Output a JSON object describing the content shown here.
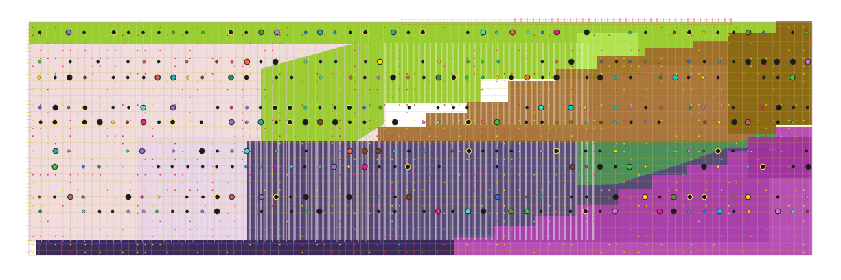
{
  "palette": {
    "background": "#ffffff",
    "region_lime": "#9ACD32",
    "region_light_green": "#B5E655",
    "region_pink": "#F0DCDC",
    "region_pale_purple": "#E6D2E6",
    "region_navy": "#3A2A60",
    "region_brown": "#A06828",
    "region_olive": "#8A6A14",
    "region_teal_green": "#4C9A54",
    "region_magenta": "#B040B0",
    "region_dark_magenta": "#A0329A",
    "grid_line_gold": "#D4B000",
    "grid_line_light": "#E8F0B0",
    "pin_dot_red": "#E0304A",
    "pin_dot_yellow": "#E8D020",
    "frame_line": "#C8A8C8",
    "instance_dark": "#1A1A1A"
  },
  "legend": [],
  "regions": [
    {
      "name": "top-strip-lime",
      "color_key": "region_lime"
    },
    {
      "name": "left-block-pink",
      "color_key": "region_pink"
    },
    {
      "name": "center-block-navy",
      "color_key": "region_navy"
    },
    {
      "name": "right-block-brown",
      "color_key": "region_brown"
    },
    {
      "name": "far-right-olive",
      "color_key": "region_olive"
    },
    {
      "name": "right-block-magenta",
      "color_key": "region_magenta"
    },
    {
      "name": "green-transition",
      "color_key": "region_teal_green"
    },
    {
      "name": "bottom-bar-navy",
      "color_key": "region_navy"
    }
  ],
  "instance_colors": [
    "#1A1A1A",
    "#2E8B57",
    "#FF6347",
    "#4169E1",
    "#DA70D6",
    "#20B2AA",
    "#FFD700",
    "#32CD32",
    "#8B4513",
    "#9370DB",
    "#00CED1",
    "#FF1493",
    "#6B8E23",
    "#CD5C5C",
    "#40E0D0"
  ]
}
